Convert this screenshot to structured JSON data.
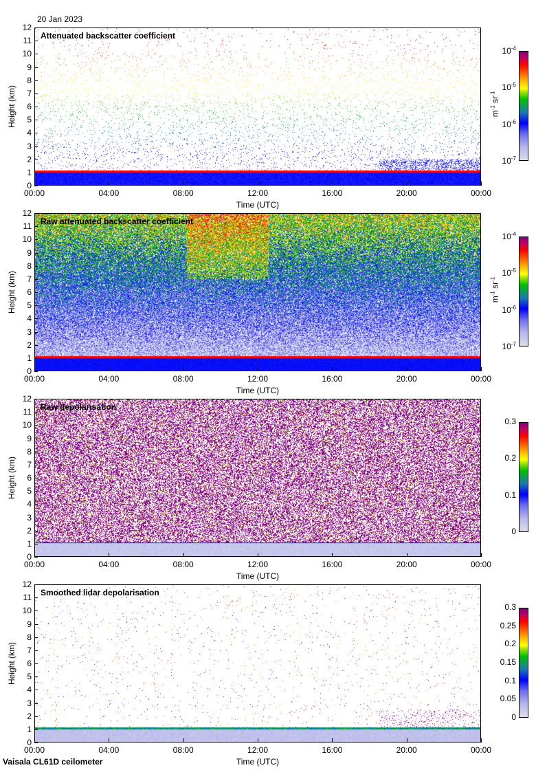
{
  "date": "20 Jan 2023",
  "footer": "Vaisala CL61D ceilometer",
  "chart_data": [
    {
      "type": "heatmap",
      "title": "Attenuated backscatter coefficient",
      "xlabel": "Time (UTC)",
      "ylabel": "Height (km)",
      "xticks": [
        "00:00",
        "04:00",
        "08:00",
        "12:00",
        "16:00",
        "20:00",
        "00:00"
      ],
      "yticks": [
        "0",
        "1",
        "2",
        "3",
        "4",
        "5",
        "6",
        "7",
        "8",
        "9",
        "10",
        "11",
        "12"
      ],
      "ylim": [
        0,
        12
      ],
      "colorbar": {
        "scale": "log",
        "ticks": [
          {
            "base": "10",
            "exp": "-7"
          },
          {
            "base": "10",
            "exp": "-6"
          },
          {
            "base": "10",
            "exp": "-5"
          },
          {
            "base": "10",
            "exp": "-4"
          }
        ],
        "unit_m": "m",
        "unit_m_exp": "-1",
        "unit_sr": "sr",
        "unit_sr_exp": "-1"
      },
      "features": "cloud/boundary layer top near 1 km all day; sparse noise aloft"
    },
    {
      "type": "heatmap",
      "title": "Raw attenuated backscatter coefficient",
      "xlabel": "Time (UTC)",
      "ylabel": "Height (km)",
      "xticks": [
        "00:00",
        "04:00",
        "08:00",
        "12:00",
        "16:00",
        "20:00",
        "00:00"
      ],
      "yticks": [
        "0",
        "1",
        "2",
        "3",
        "4",
        "5",
        "6",
        "7",
        "8",
        "9",
        "10",
        "11",
        "12"
      ],
      "ylim": [
        0,
        12
      ],
      "colorbar": {
        "scale": "log",
        "ticks": [
          {
            "base": "10",
            "exp": "-7"
          },
          {
            "base": "10",
            "exp": "-6"
          },
          {
            "base": "10",
            "exp": "-5"
          },
          {
            "base": "10",
            "exp": "-4"
          }
        ],
        "unit_m": "m",
        "unit_m_exp": "-1",
        "unit_sr": "sr",
        "unit_sr_exp": "-1"
      },
      "features": "layer near 1 km; noisy background increasing with height"
    },
    {
      "type": "heatmap",
      "title": "Raw depolarisation",
      "xlabel": "Time (UTC)",
      "ylabel": "Height (km)",
      "xticks": [
        "00:00",
        "04:00",
        "08:00",
        "12:00",
        "16:00",
        "20:00",
        "00:00"
      ],
      "yticks": [
        "0",
        "1",
        "2",
        "3",
        "4",
        "5",
        "6",
        "7",
        "8",
        "9",
        "10",
        "11",
        "12"
      ],
      "ylim": [
        0,
        12
      ],
      "colorbar": {
        "scale": "linear",
        "ticks": [
          "0",
          "0.1",
          "0.2",
          "0.3"
        ]
      },
      "features": "noise above 1 km"
    },
    {
      "type": "heatmap",
      "title": "Smoothed lidar depolarisation",
      "xlabel": "Time (UTC)",
      "ylabel": "Height (km)",
      "xticks": [
        "00:00",
        "04:00",
        "08:00",
        "12:00",
        "16:00",
        "20:00",
        "00:00"
      ],
      "yticks": [
        "0",
        "1",
        "2",
        "3",
        "4",
        "5",
        "6",
        "7",
        "8",
        "9",
        "10",
        "11",
        "12"
      ],
      "ylim": [
        0,
        12
      ],
      "colorbar": {
        "scale": "linear",
        "ticks": [
          "0",
          "0.05",
          "0.1",
          "0.15",
          "0.2",
          "0.25",
          "0.3"
        ]
      },
      "features": "low depolarisation below ~1 km"
    }
  ]
}
